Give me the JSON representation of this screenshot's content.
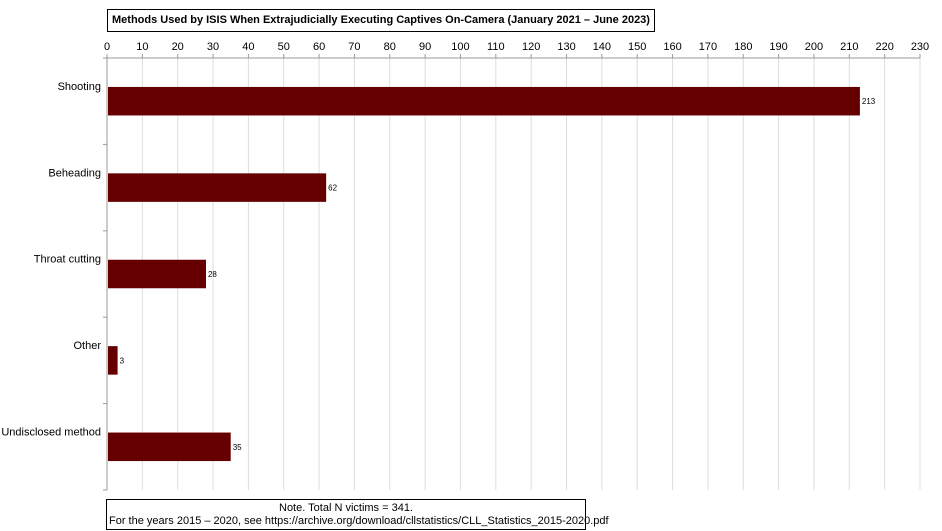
{
  "chart_data": {
    "type": "bar",
    "orientation": "horizontal",
    "title": "Methods Used by ISIS When Extrajudicially Executing Captives On-Camera (January 2021 – June 2023)",
    "categories": [
      "Shooting",
      "Beheading",
      "Throat cutting",
      "Other",
      "Undisclosed method"
    ],
    "values": [
      213,
      62,
      28,
      3,
      35
    ],
    "xlim": [
      0,
      230
    ],
    "xticks": [
      0,
      10,
      20,
      30,
      40,
      50,
      60,
      70,
      80,
      90,
      100,
      110,
      120,
      130,
      140,
      150,
      160,
      170,
      180,
      190,
      200,
      210,
      220,
      230
    ],
    "x_axis_position": "top",
    "grid": true,
    "legend": "none",
    "bar_color": "#660000",
    "grid_color": "#dddddd"
  },
  "note": {
    "line1": "Note. Total N victims = 341.",
    "line2": "For the years 2015 – 2020, see https://archive.org/download/cllstatistics/CLL_Statistics_2015-2020.pdf"
  }
}
